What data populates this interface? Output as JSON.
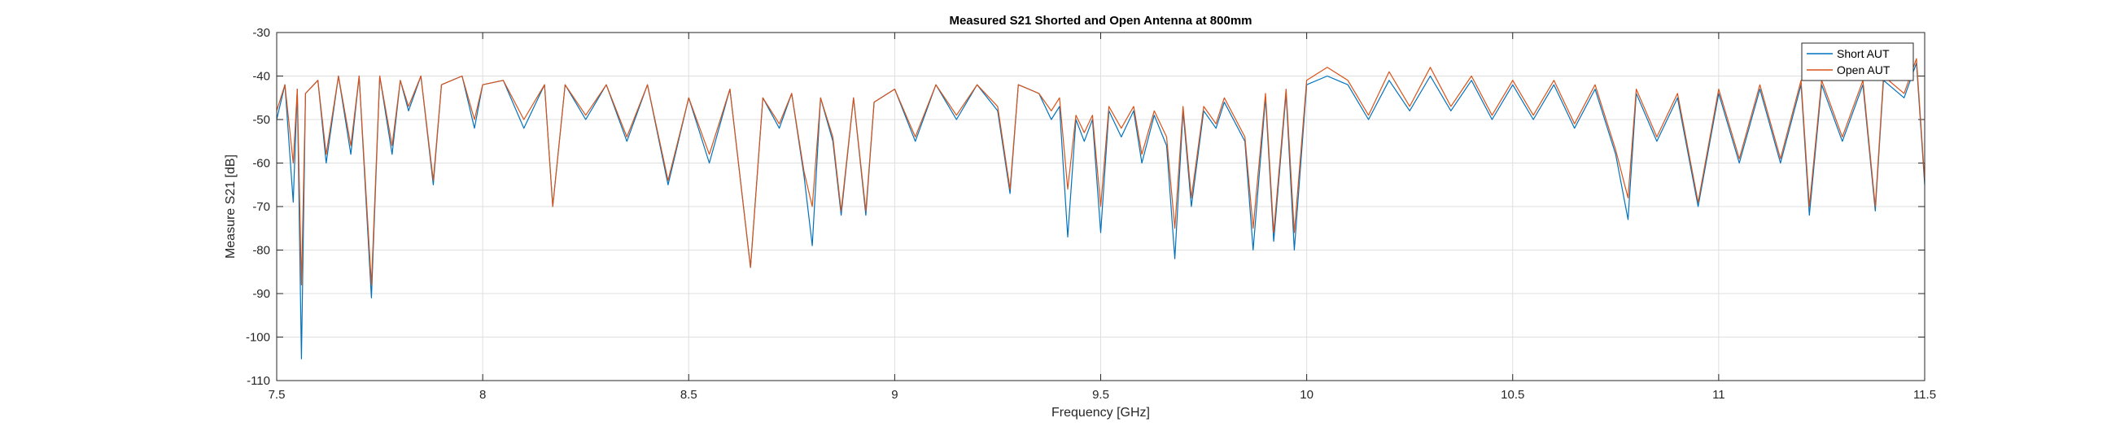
{
  "chart_data": {
    "type": "line",
    "title": "Measured S21 Shorted and Open Antenna at 800mm",
    "xlabel": "Frequency [GHz]",
    "ylabel": "Measure S21 [dB]",
    "xlim": [
      7.5,
      11.5
    ],
    "ylim": [
      -110,
      -30
    ],
    "xticks": [
      7.5,
      8,
      8.5,
      9,
      9.5,
      10,
      10.5,
      11,
      11.5
    ],
    "xtick_labels": [
      "7.5",
      "8",
      "8.5",
      "9",
      "9.5",
      "10",
      "10.5",
      "11",
      "11.5"
    ],
    "yticks": [
      -110,
      -100,
      -90,
      -80,
      -70,
      -60,
      -50,
      -40,
      -30
    ],
    "ytick_labels": [
      "-110",
      "-100",
      "-90",
      "-80",
      "-70",
      "-60",
      "-50",
      "-40",
      "-30"
    ],
    "grid": true,
    "legend_position": "top-right",
    "series": [
      {
        "name": "Short AUT",
        "color": "#0072BD",
        "points": [
          [
            7.5,
            -50
          ],
          [
            7.52,
            -42
          ],
          [
            7.54,
            -69
          ],
          [
            7.55,
            -43
          ],
          [
            7.56,
            -105
          ],
          [
            7.57,
            -44
          ],
          [
            7.6,
            -41
          ],
          [
            7.62,
            -60
          ],
          [
            7.65,
            -40
          ],
          [
            7.68,
            -58
          ],
          [
            7.7,
            -40
          ],
          [
            7.73,
            -91
          ],
          [
            7.75,
            -40
          ],
          [
            7.78,
            -58
          ],
          [
            7.8,
            -41
          ],
          [
            7.82,
            -48
          ],
          [
            7.85,
            -40
          ],
          [
            7.88,
            -65
          ],
          [
            7.9,
            -42
          ],
          [
            7.95,
            -40
          ],
          [
            7.98,
            -52
          ],
          [
            8.0,
            -42
          ],
          [
            8.05,
            -41
          ],
          [
            8.1,
            -52
          ],
          [
            8.15,
            -42
          ],
          [
            8.17,
            -70
          ],
          [
            8.2,
            -42
          ],
          [
            8.25,
            -50
          ],
          [
            8.3,
            -42
          ],
          [
            8.35,
            -55
          ],
          [
            8.4,
            -42
          ],
          [
            8.45,
            -65
          ],
          [
            8.5,
            -45
          ],
          [
            8.55,
            -60
          ],
          [
            8.6,
            -43
          ],
          [
            8.65,
            -84
          ],
          [
            8.68,
            -45
          ],
          [
            8.72,
            -52
          ],
          [
            8.75,
            -44
          ],
          [
            8.78,
            -63
          ],
          [
            8.8,
            -79
          ],
          [
            8.82,
            -45
          ],
          [
            8.85,
            -55
          ],
          [
            8.87,
            -72
          ],
          [
            8.9,
            -45
          ],
          [
            8.93,
            -72
          ],
          [
            8.95,
            -46
          ],
          [
            9.0,
            -43
          ],
          [
            9.05,
            -55
          ],
          [
            9.1,
            -42
          ],
          [
            9.15,
            -50
          ],
          [
            9.2,
            -42
          ],
          [
            9.25,
            -48
          ],
          [
            9.28,
            -67
          ],
          [
            9.3,
            -42
          ],
          [
            9.35,
            -44
          ],
          [
            9.38,
            -50
          ],
          [
            9.4,
            -47
          ],
          [
            9.42,
            -77
          ],
          [
            9.44,
            -50
          ],
          [
            9.46,
            -55
          ],
          [
            9.48,
            -50
          ],
          [
            9.5,
            -76
          ],
          [
            9.52,
            -48
          ],
          [
            9.55,
            -54
          ],
          [
            9.58,
            -48
          ],
          [
            9.6,
            -60
          ],
          [
            9.63,
            -49
          ],
          [
            9.66,
            -56
          ],
          [
            9.68,
            -82
          ],
          [
            9.7,
            -48
          ],
          [
            9.72,
            -70
          ],
          [
            9.75,
            -48
          ],
          [
            9.78,
            -52
          ],
          [
            9.8,
            -46
          ],
          [
            9.85,
            -55
          ],
          [
            9.87,
            -80
          ],
          [
            9.9,
            -45
          ],
          [
            9.92,
            -78
          ],
          [
            9.95,
            -44
          ],
          [
            9.97,
            -80
          ],
          [
            10.0,
            -42
          ],
          [
            10.05,
            -40
          ],
          [
            10.1,
            -42
          ],
          [
            10.15,
            -50
          ],
          [
            10.2,
            -41
          ],
          [
            10.25,
            -48
          ],
          [
            10.3,
            -40
          ],
          [
            10.35,
            -48
          ],
          [
            10.4,
            -41
          ],
          [
            10.45,
            -50
          ],
          [
            10.5,
            -42
          ],
          [
            10.55,
            -50
          ],
          [
            10.6,
            -42
          ],
          [
            10.65,
            -52
          ],
          [
            10.7,
            -43
          ],
          [
            10.75,
            -58
          ],
          [
            10.78,
            -73
          ],
          [
            10.8,
            -44
          ],
          [
            10.85,
            -55
          ],
          [
            10.9,
            -45
          ],
          [
            10.95,
            -70
          ],
          [
            11.0,
            -44
          ],
          [
            11.05,
            -60
          ],
          [
            11.1,
            -43
          ],
          [
            11.15,
            -60
          ],
          [
            11.2,
            -42
          ],
          [
            11.22,
            -72
          ],
          [
            11.25,
            -42
          ],
          [
            11.3,
            -55
          ],
          [
            11.35,
            -42
          ],
          [
            11.38,
            -71
          ],
          [
            11.4,
            -41
          ],
          [
            11.45,
            -45
          ],
          [
            11.48,
            -37
          ],
          [
            11.5,
            -65
          ]
        ]
      },
      {
        "name": "Open AUT",
        "color": "#D95319",
        "points": [
          [
            7.5,
            -48
          ],
          [
            7.52,
            -42
          ],
          [
            7.54,
            -60
          ],
          [
            7.55,
            -43
          ],
          [
            7.56,
            -88
          ],
          [
            7.57,
            -44
          ],
          [
            7.6,
            -41
          ],
          [
            7.62,
            -58
          ],
          [
            7.65,
            -40
          ],
          [
            7.68,
            -56
          ],
          [
            7.7,
            -40
          ],
          [
            7.73,
            -88
          ],
          [
            7.75,
            -40
          ],
          [
            7.78,
            -56
          ],
          [
            7.8,
            -41
          ],
          [
            7.82,
            -47
          ],
          [
            7.85,
            -40
          ],
          [
            7.88,
            -64
          ],
          [
            7.9,
            -42
          ],
          [
            7.95,
            -40
          ],
          [
            7.98,
            -50
          ],
          [
            8.0,
            -42
          ],
          [
            8.05,
            -41
          ],
          [
            8.1,
            -50
          ],
          [
            8.15,
            -42
          ],
          [
            8.17,
            -70
          ],
          [
            8.2,
            -42
          ],
          [
            8.25,
            -49
          ],
          [
            8.3,
            -42
          ],
          [
            8.35,
            -54
          ],
          [
            8.4,
            -42
          ],
          [
            8.45,
            -64
          ],
          [
            8.5,
            -45
          ],
          [
            8.55,
            -58
          ],
          [
            8.6,
            -43
          ],
          [
            8.65,
            -84
          ],
          [
            8.68,
            -45
          ],
          [
            8.72,
            -51
          ],
          [
            8.75,
            -44
          ],
          [
            8.78,
            -62
          ],
          [
            8.8,
            -70
          ],
          [
            8.82,
            -45
          ],
          [
            8.85,
            -54
          ],
          [
            8.87,
            -71
          ],
          [
            8.9,
            -45
          ],
          [
            8.93,
            -71
          ],
          [
            8.95,
            -46
          ],
          [
            9.0,
            -43
          ],
          [
            9.05,
            -54
          ],
          [
            9.1,
            -42
          ],
          [
            9.15,
            -49
          ],
          [
            9.2,
            -42
          ],
          [
            9.25,
            -47
          ],
          [
            9.28,
            -66
          ],
          [
            9.3,
            -42
          ],
          [
            9.35,
            -44
          ],
          [
            9.38,
            -48
          ],
          [
            9.4,
            -45
          ],
          [
            9.42,
            -66
          ],
          [
            9.44,
            -49
          ],
          [
            9.46,
            -53
          ],
          [
            9.48,
            -49
          ],
          [
            9.5,
            -70
          ],
          [
            9.52,
            -47
          ],
          [
            9.55,
            -52
          ],
          [
            9.58,
            -47
          ],
          [
            9.6,
            -58
          ],
          [
            9.63,
            -48
          ],
          [
            9.66,
            -54
          ],
          [
            9.68,
            -75
          ],
          [
            9.7,
            -47
          ],
          [
            9.72,
            -68
          ],
          [
            9.75,
            -47
          ],
          [
            9.78,
            -51
          ],
          [
            9.8,
            -45
          ],
          [
            9.85,
            -54
          ],
          [
            9.87,
            -75
          ],
          [
            9.9,
            -44
          ],
          [
            9.92,
            -76
          ],
          [
            9.95,
            -43
          ],
          [
            9.97,
            -76
          ],
          [
            10.0,
            -41
          ],
          [
            10.05,
            -38
          ],
          [
            10.1,
            -41
          ],
          [
            10.15,
            -49
          ],
          [
            10.2,
            -39
          ],
          [
            10.25,
            -47
          ],
          [
            10.3,
            -38
          ],
          [
            10.35,
            -47
          ],
          [
            10.4,
            -40
          ],
          [
            10.45,
            -49
          ],
          [
            10.5,
            -41
          ],
          [
            10.55,
            -49
          ],
          [
            10.6,
            -41
          ],
          [
            10.65,
            -51
          ],
          [
            10.7,
            -42
          ],
          [
            10.75,
            -57
          ],
          [
            10.78,
            -68
          ],
          [
            10.8,
            -43
          ],
          [
            10.85,
            -54
          ],
          [
            10.9,
            -44
          ],
          [
            10.95,
            -69
          ],
          [
            11.0,
            -43
          ],
          [
            11.05,
            -59
          ],
          [
            11.1,
            -42
          ],
          [
            11.15,
            -59
          ],
          [
            11.2,
            -41
          ],
          [
            11.22,
            -70
          ],
          [
            11.25,
            -41
          ],
          [
            11.3,
            -54
          ],
          [
            11.35,
            -41
          ],
          [
            11.38,
            -70
          ],
          [
            11.4,
            -40
          ],
          [
            11.45,
            -44
          ],
          [
            11.48,
            -36
          ],
          [
            11.5,
            -64
          ]
        ]
      }
    ]
  }
}
